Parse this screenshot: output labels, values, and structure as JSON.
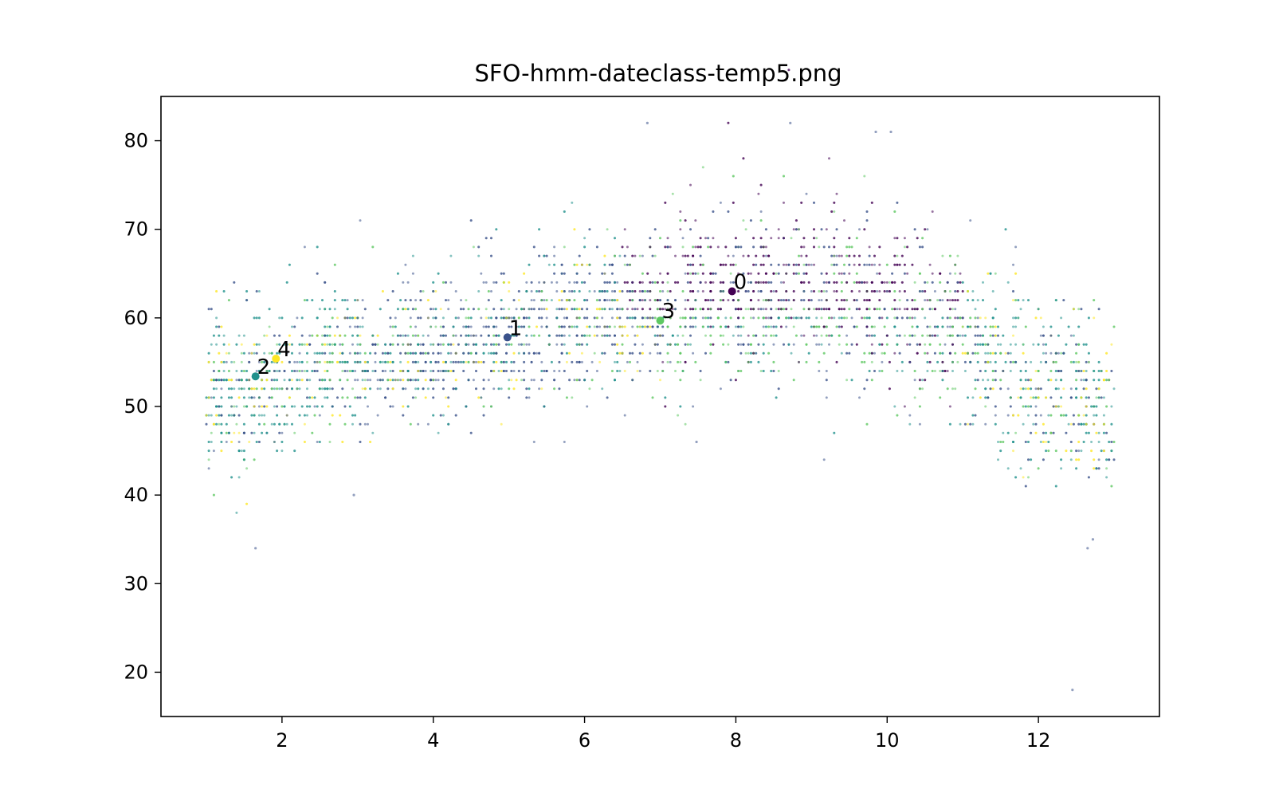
{
  "chart_data": {
    "type": "scatter",
    "title": "SFO-hmm-dateclass-temp5.png",
    "xlabel": "",
    "ylabel": "",
    "xlim": [
      0.4,
      13.6
    ],
    "ylim": [
      15,
      85
    ],
    "xticks": [
      2,
      4,
      6,
      8,
      10,
      12
    ],
    "yticks": [
      20,
      30,
      40,
      50,
      60,
      70,
      80
    ],
    "grid": false,
    "legend": "none",
    "colors": [
      "#440154",
      "#3b528b",
      "#21918c",
      "#5ec962",
      "#fde725"
    ],
    "centers": [
      {
        "label": "0",
        "x": 7.95,
        "y": 63.0
      },
      {
        "label": "1",
        "x": 4.98,
        "y": 57.8
      },
      {
        "label": "2",
        "x": 1.65,
        "y": 53.4
      },
      {
        "label": "3",
        "x": 7.0,
        "y": 59.7
      },
      {
        "label": "4",
        "x": 1.92,
        "y": 55.4
      }
    ],
    "outliers": [
      {
        "x": 1.65,
        "y": 34
      },
      {
        "x": 12.45,
        "y": 18
      },
      {
        "x": 12.65,
        "y": 34
      },
      {
        "x": 12.72,
        "y": 35
      },
      {
        "x": 6.83,
        "y": 82
      },
      {
        "x": 8.72,
        "y": 82
      },
      {
        "x": 7.48,
        "y": 46
      },
      {
        "x": 2.95,
        "y": 40
      },
      {
        "x": 9.85,
        "y": 81
      },
      {
        "x": 10.05,
        "y": 81
      }
    ],
    "seasonal_mean_by_month": [
      {
        "x": 1,
        "y": 51
      },
      {
        "x": 2,
        "y": 53
      },
      {
        "x": 3,
        "y": 55
      },
      {
        "x": 4,
        "y": 56
      },
      {
        "x": 5,
        "y": 57.5
      },
      {
        "x": 6,
        "y": 59.5
      },
      {
        "x": 7,
        "y": 61
      },
      {
        "x": 8,
        "y": 62
      },
      {
        "x": 9,
        "y": 62.5
      },
      {
        "x": 10,
        "y": 61.5
      },
      {
        "x": 11,
        "y": 57
      },
      {
        "x": 12,
        "y": 51.5
      },
      {
        "x": 13,
        "y": 50
      }
    ]
  }
}
